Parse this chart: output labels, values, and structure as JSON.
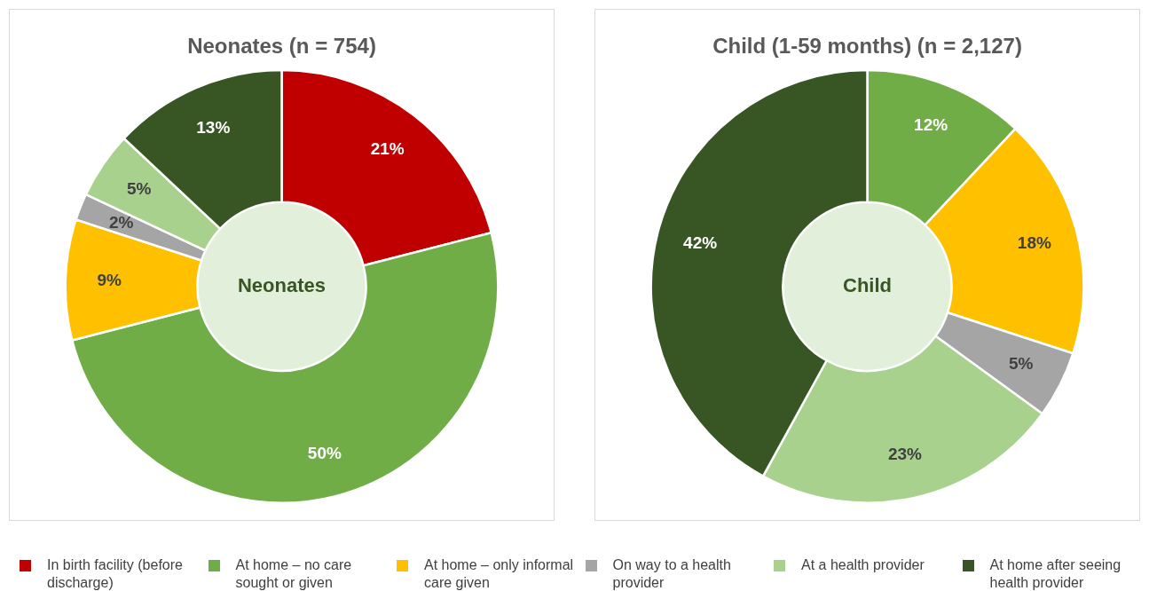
{
  "chart_data": [
    {
      "type": "donut",
      "title": "Neonates (n = 754)",
      "categories": [
        "In birth facility (before discharge)",
        "At home – no care sought or given",
        "At home – only informal care given",
        "On way to a health provider",
        "At a health provider",
        "At home after seeing health provider"
      ],
      "values": [
        21,
        50,
        9,
        2,
        5,
        13
      ],
      "colors": [
        "#c00000",
        "#70ad47",
        "#ffc000",
        "#a5a5a5",
        "#a9d18e",
        "#375623"
      ],
      "value_labels": [
        "21%",
        "50%",
        "9%",
        "2%",
        "5%",
        "13%"
      ],
      "annotations": [
        "Neonates"
      ],
      "legend": "bottom"
    },
    {
      "type": "donut",
      "title": "Child (1-59 months) (n = 2,127)",
      "categories": [
        null,
        null,
        null,
        null,
        null
      ],
      "values": [
        12,
        18,
        5,
        23,
        42
      ],
      "colors": [
        "#70ad47",
        "#ffc000",
        "#a5a5a5",
        "#a9d18e",
        "#375623"
      ],
      "value_labels": [
        "12%",
        "18%",
        "5%",
        "23%",
        "42%"
      ],
      "annotations": [
        "Child"
      ]
    }
  ]
}
